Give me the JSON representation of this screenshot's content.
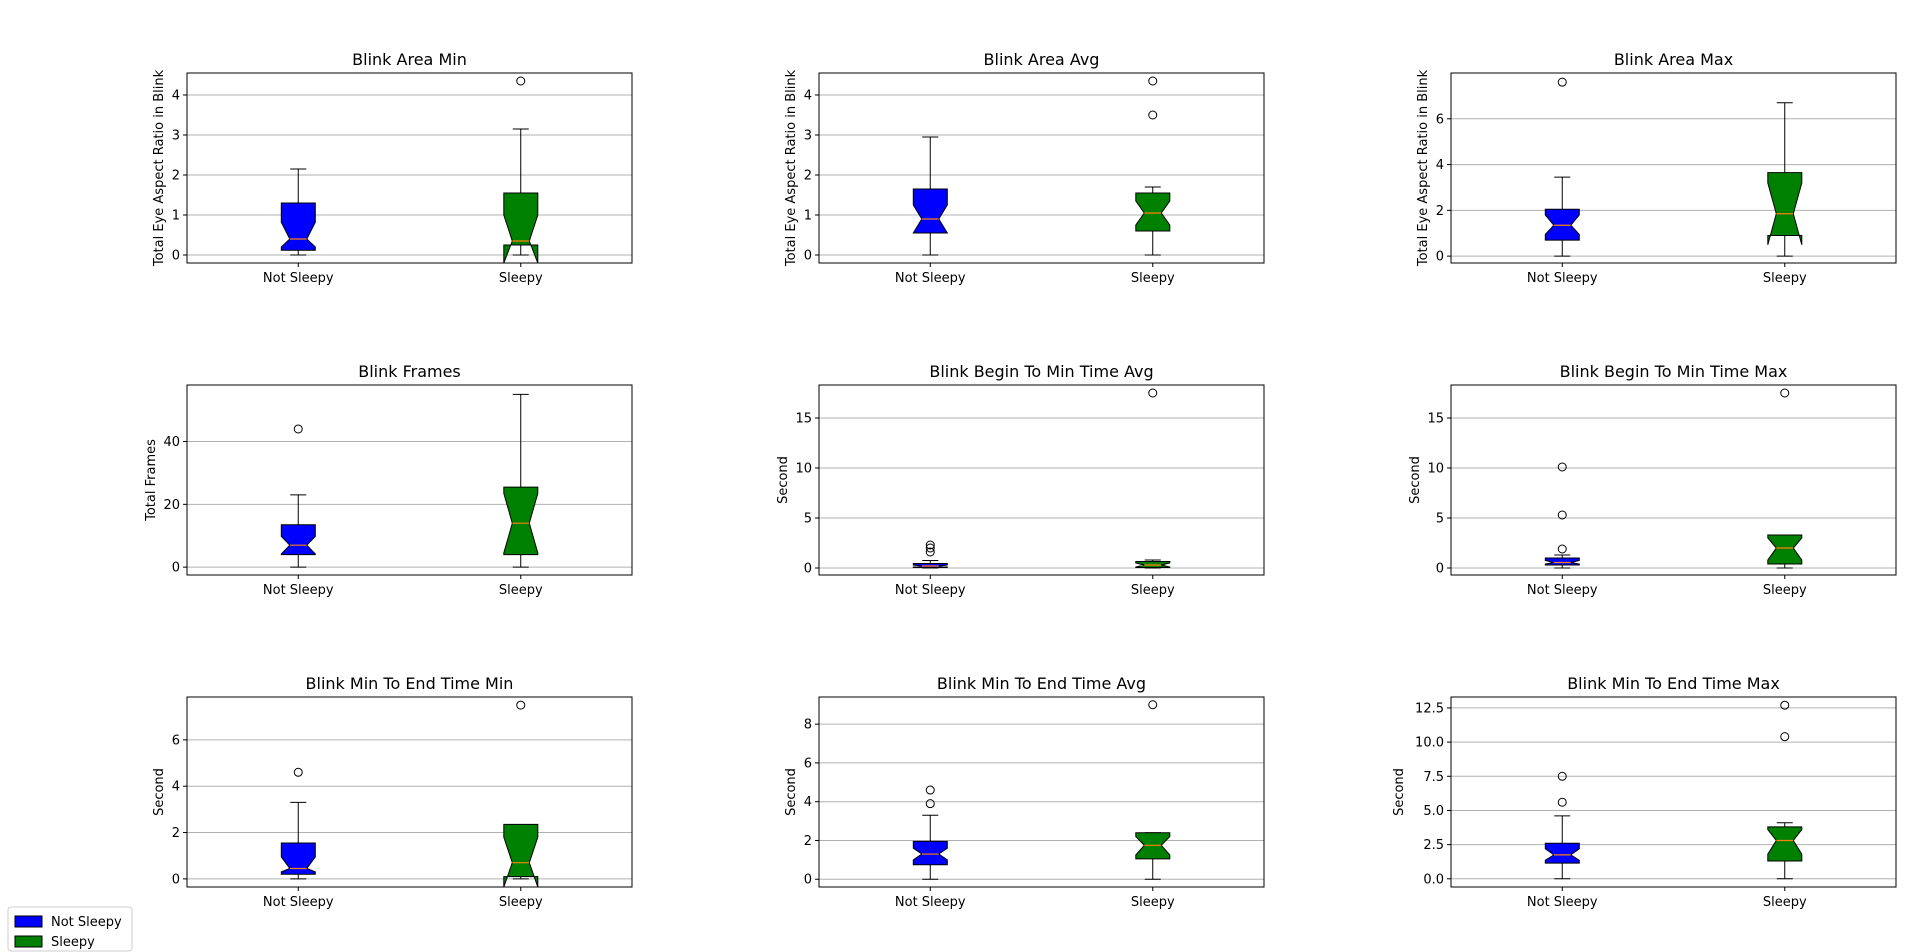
{
  "categories": [
    "Not Sleepy",
    "Sleepy"
  ],
  "colors": {
    "Not Sleepy": "#0000ff",
    "Sleepy": "#008000",
    "median": "#ff7f0e",
    "grid": "#b0b0b0"
  },
  "legend": {
    "placement": "bottom-left",
    "items": [
      {
        "label": "Not Sleepy",
        "color": "#0000ff"
      },
      {
        "label": "Sleepy",
        "color": "#008000"
      }
    ]
  },
  "chart_data": [
    {
      "type": "box",
      "title": "Blink Area Min",
      "xlabel": "",
      "ylabel": "Total Eye Aspect Ratio in Blink",
      "ylim": [
        -0.2,
        4.55
      ],
      "yticks": [
        0,
        1,
        2,
        3,
        4
      ],
      "ytick_labels": [
        "0",
        "1",
        "2",
        "3",
        "4"
      ],
      "grid": "y",
      "categories": [
        "Not Sleepy",
        "Sleepy"
      ],
      "boxes": [
        {
          "whislo": 0,
          "q1": 0.12,
          "med": 0.4,
          "q3": 1.3,
          "whishi": 2.15,
          "notch_lo": 0.2,
          "notch_hi": 0.82,
          "fliers": []
        },
        {
          "whislo": 0,
          "q1": 0.25,
          "med": 0.35,
          "q3": 1.55,
          "whishi": 3.15,
          "notch_lo": -0.2,
          "notch_hi": 1.0,
          "fliers": [
            4.35
          ]
        }
      ]
    },
    {
      "type": "box",
      "title": "Blink Area Avg",
      "xlabel": "",
      "ylabel": "Total Eye Aspect Ratio in Blink",
      "ylim": [
        -0.2,
        4.55
      ],
      "yticks": [
        0,
        1,
        2,
        3,
        4
      ],
      "ytick_labels": [
        "0",
        "1",
        "2",
        "3",
        "4"
      ],
      "grid": "y",
      "categories": [
        "Not Sleepy",
        "Sleepy"
      ],
      "boxes": [
        {
          "whislo": 0,
          "q1": 0.55,
          "med": 0.9,
          "q3": 1.65,
          "whishi": 2.95,
          "notch_lo": 0.55,
          "notch_hi": 1.25,
          "fliers": []
        },
        {
          "whislo": 0,
          "q1": 0.6,
          "med": 1.05,
          "q3": 1.55,
          "whishi": 1.7,
          "notch_lo": 0.75,
          "notch_hi": 1.35,
          "fliers": [
            3.5,
            4.35
          ]
        }
      ]
    },
    {
      "type": "box",
      "title": "Blink Area Max",
      "xlabel": "",
      "ylabel": "Total Eye Aspect Ratio in Blink",
      "ylim": [
        -0.3,
        8.0
      ],
      "yticks": [
        0,
        2,
        4,
        6
      ],
      "ytick_labels": [
        "0",
        "2",
        "4",
        "6"
      ],
      "grid": "y",
      "categories": [
        "Not Sleepy",
        "Sleepy"
      ],
      "boxes": [
        {
          "whislo": 0,
          "q1": 0.7,
          "med": 1.35,
          "q3": 2.05,
          "whishi": 3.45,
          "notch_lo": 0.95,
          "notch_hi": 1.8,
          "fliers": [
            7.6
          ]
        },
        {
          "whislo": 0,
          "q1": 0.9,
          "med": 1.85,
          "q3": 3.65,
          "whishi": 6.7,
          "notch_lo": 0.5,
          "notch_hi": 3.2,
          "fliers": []
        }
      ]
    },
    {
      "type": "box",
      "title": "Blink Frames",
      "xlabel": "",
      "ylabel": "Total Frames",
      "ylim": [
        -2.5,
        58.0
      ],
      "yticks": [
        0,
        20,
        40
      ],
      "ytick_labels": [
        "0",
        "20",
        "40"
      ],
      "grid": "y",
      "categories": [
        "Not Sleepy",
        "Sleepy"
      ],
      "boxes": [
        {
          "whislo": 0,
          "q1": 4,
          "med": 7,
          "q3": 13.5,
          "whishi": 23,
          "notch_lo": 4.2,
          "notch_hi": 9.8,
          "fliers": [
            44
          ]
        },
        {
          "whislo": 0,
          "q1": 4,
          "med": 14,
          "q3": 25.5,
          "whishi": 55,
          "notch_lo": 4.5,
          "notch_hi": 23.5,
          "fliers": []
        }
      ]
    },
    {
      "type": "box",
      "title": "Blink Begin To Min Time Avg",
      "xlabel": "",
      "ylabel": "Second",
      "ylim": [
        -0.7,
        18.3
      ],
      "yticks": [
        0,
        5,
        10,
        15
      ],
      "ytick_labels": [
        "0",
        "5",
        "10",
        "15"
      ],
      "grid": "y",
      "categories": [
        "Not Sleepy",
        "Sleepy"
      ],
      "boxes": [
        {
          "whislo": 0,
          "q1": 0.05,
          "med": 0.2,
          "q3": 0.45,
          "whishi": 0.75,
          "notch_lo": 0.1,
          "notch_hi": 0.3,
          "fliers": [
            1.6,
            2.0,
            2.3
          ]
        },
        {
          "whislo": 0,
          "q1": 0.05,
          "med": 0.3,
          "q3": 0.65,
          "whishi": 0.8,
          "notch_lo": 0.1,
          "notch_hi": 0.5,
          "fliers": [
            17.5
          ]
        }
      ]
    },
    {
      "type": "box",
      "title": "Blink Begin To Min Time Max",
      "xlabel": "",
      "ylabel": "Second",
      "ylim": [
        -0.7,
        18.3
      ],
      "yticks": [
        0,
        5,
        10,
        15
      ],
      "ytick_labels": [
        "0",
        "5",
        "10",
        "15"
      ],
      "grid": "y",
      "categories": [
        "Not Sleepy",
        "Sleepy"
      ],
      "boxes": [
        {
          "whislo": 0,
          "q1": 0.3,
          "med": 0.55,
          "q3": 1.0,
          "whishi": 1.3,
          "notch_lo": 0.4,
          "notch_hi": 0.75,
          "fliers": [
            1.9,
            5.3,
            10.1
          ]
        },
        {
          "whislo": 0,
          "q1": 0.4,
          "med": 2.0,
          "q3": 3.3,
          "whishi": 3.3,
          "notch_lo": 0.8,
          "notch_hi": 3.0,
          "fliers": [
            17.5
          ]
        }
      ]
    },
    {
      "type": "box",
      "title": "Blink Min To End Time Min",
      "xlabel": "",
      "ylabel": "Second",
      "ylim": [
        -0.35,
        7.85
      ],
      "yticks": [
        0,
        2,
        4,
        6
      ],
      "ytick_labels": [
        "0",
        "2",
        "4",
        "6"
      ],
      "grid": "y",
      "categories": [
        "Not Sleepy",
        "Sleepy"
      ],
      "boxes": [
        {
          "whislo": 0,
          "q1": 0.2,
          "med": 0.45,
          "q3": 1.55,
          "whishi": 3.3,
          "notch_lo": 0.3,
          "notch_hi": 0.95,
          "fliers": [
            4.6
          ]
        },
        {
          "whislo": 0,
          "q1": 0.1,
          "med": 0.7,
          "q3": 2.35,
          "whishi": 2.35,
          "notch_lo": -0.35,
          "notch_hi": 1.8,
          "fliers": [
            7.5
          ]
        }
      ]
    },
    {
      "type": "box",
      "title": "Blink Min To End Time Avg",
      "xlabel": "",
      "ylabel": "Second",
      "ylim": [
        -0.4,
        9.4
      ],
      "yticks": [
        0,
        2,
        4,
        6,
        8
      ],
      "ytick_labels": [
        "0",
        "2",
        "4",
        "6",
        "8"
      ],
      "grid": "y",
      "categories": [
        "Not Sleepy",
        "Sleepy"
      ],
      "boxes": [
        {
          "whislo": 0,
          "q1": 0.75,
          "med": 1.3,
          "q3": 1.95,
          "whishi": 3.3,
          "notch_lo": 1.0,
          "notch_hi": 1.6,
          "fliers": [
            3.9,
            4.6
          ]
        },
        {
          "whislo": 0,
          "q1": 1.05,
          "med": 1.75,
          "q3": 2.4,
          "whishi": 2.4,
          "notch_lo": 1.25,
          "notch_hi": 2.2,
          "fliers": [
            9.0
          ]
        }
      ]
    },
    {
      "type": "box",
      "title": "Blink Min To End Time Max",
      "xlabel": "",
      "ylabel": "Second",
      "ylim": [
        -0.6,
        13.3
      ],
      "yticks": [
        0,
        2.5,
        5,
        7.5,
        10,
        12.5
      ],
      "ytick_labels": [
        "0.0",
        "2.5",
        "5.0",
        "7.5",
        "10.0",
        "12.5"
      ],
      "grid": "y",
      "categories": [
        "Not Sleepy",
        "Sleepy"
      ],
      "boxes": [
        {
          "whislo": 0,
          "q1": 1.15,
          "med": 1.75,
          "q3": 2.6,
          "whishi": 4.6,
          "notch_lo": 1.35,
          "notch_hi": 2.2,
          "fliers": [
            5.6,
            7.5
          ]
        },
        {
          "whislo": 0,
          "q1": 1.3,
          "med": 2.8,
          "q3": 3.8,
          "whishi": 4.1,
          "notch_lo": 1.8,
          "notch_hi": 3.6,
          "fliers": [
            10.4,
            12.7
          ]
        }
      ]
    }
  ]
}
